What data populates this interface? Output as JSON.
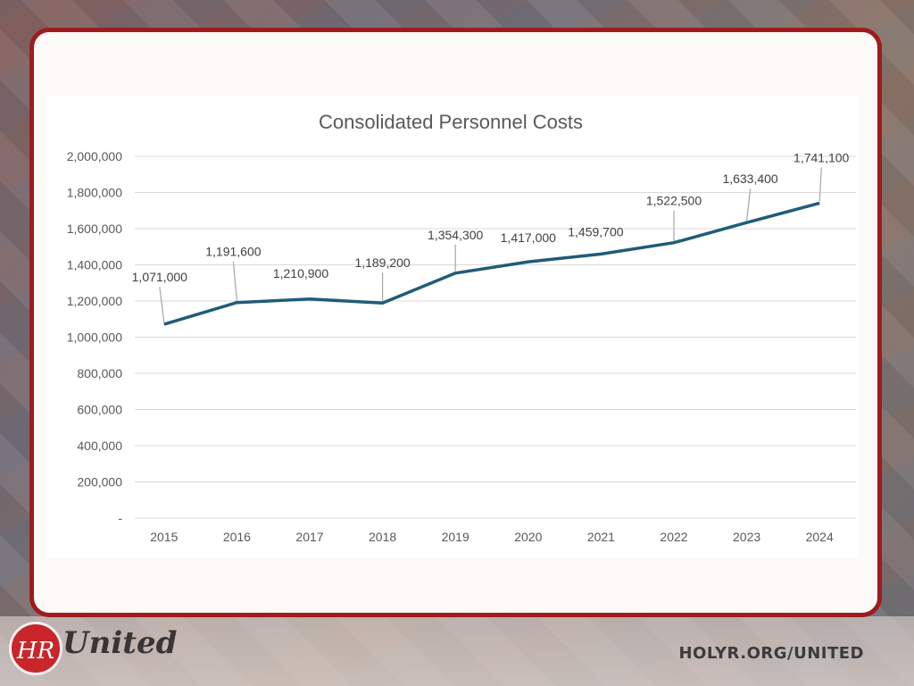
{
  "chart_data": {
    "type": "line",
    "title": "Consolidated Personnel Costs",
    "categories": [
      "2015",
      "2016",
      "2017",
      "2018",
      "2019",
      "2020",
      "2021",
      "2022",
      "2023",
      "2024"
    ],
    "values": [
      1071000,
      1191600,
      1210900,
      1189200,
      1354300,
      1417000,
      1459700,
      1522500,
      1633400,
      1741100
    ],
    "data_labels": [
      "1,071,000",
      "1,191,600",
      "1,210,900",
      "1,189,200",
      "1,354,300",
      "1,417,000",
      "1,459,700",
      "1,522,500",
      "1,633,400",
      "1,741,100"
    ],
    "y_ticks": [
      0,
      200000,
      400000,
      600000,
      800000,
      1000000,
      1200000,
      1400000,
      1600000,
      1800000,
      2000000
    ],
    "y_tick_labels": [
      "-",
      "200,000",
      "400,000",
      "600,000",
      "800,000",
      "1,000,000",
      "1,200,000",
      "1,400,000",
      "1,600,000",
      "1,800,000",
      "2,000,000"
    ],
    "ylim": [
      0,
      2000000
    ],
    "xlabel": "",
    "ylabel": "",
    "grid": true,
    "line_color": "#1f5c78"
  },
  "branding": {
    "logo_monogram": "HR",
    "logo_word": "United",
    "website": "HOLYR.ORG/UNITED"
  },
  "colors": {
    "card_border": "#9e1b1e",
    "logo_red": "#c8262b"
  }
}
